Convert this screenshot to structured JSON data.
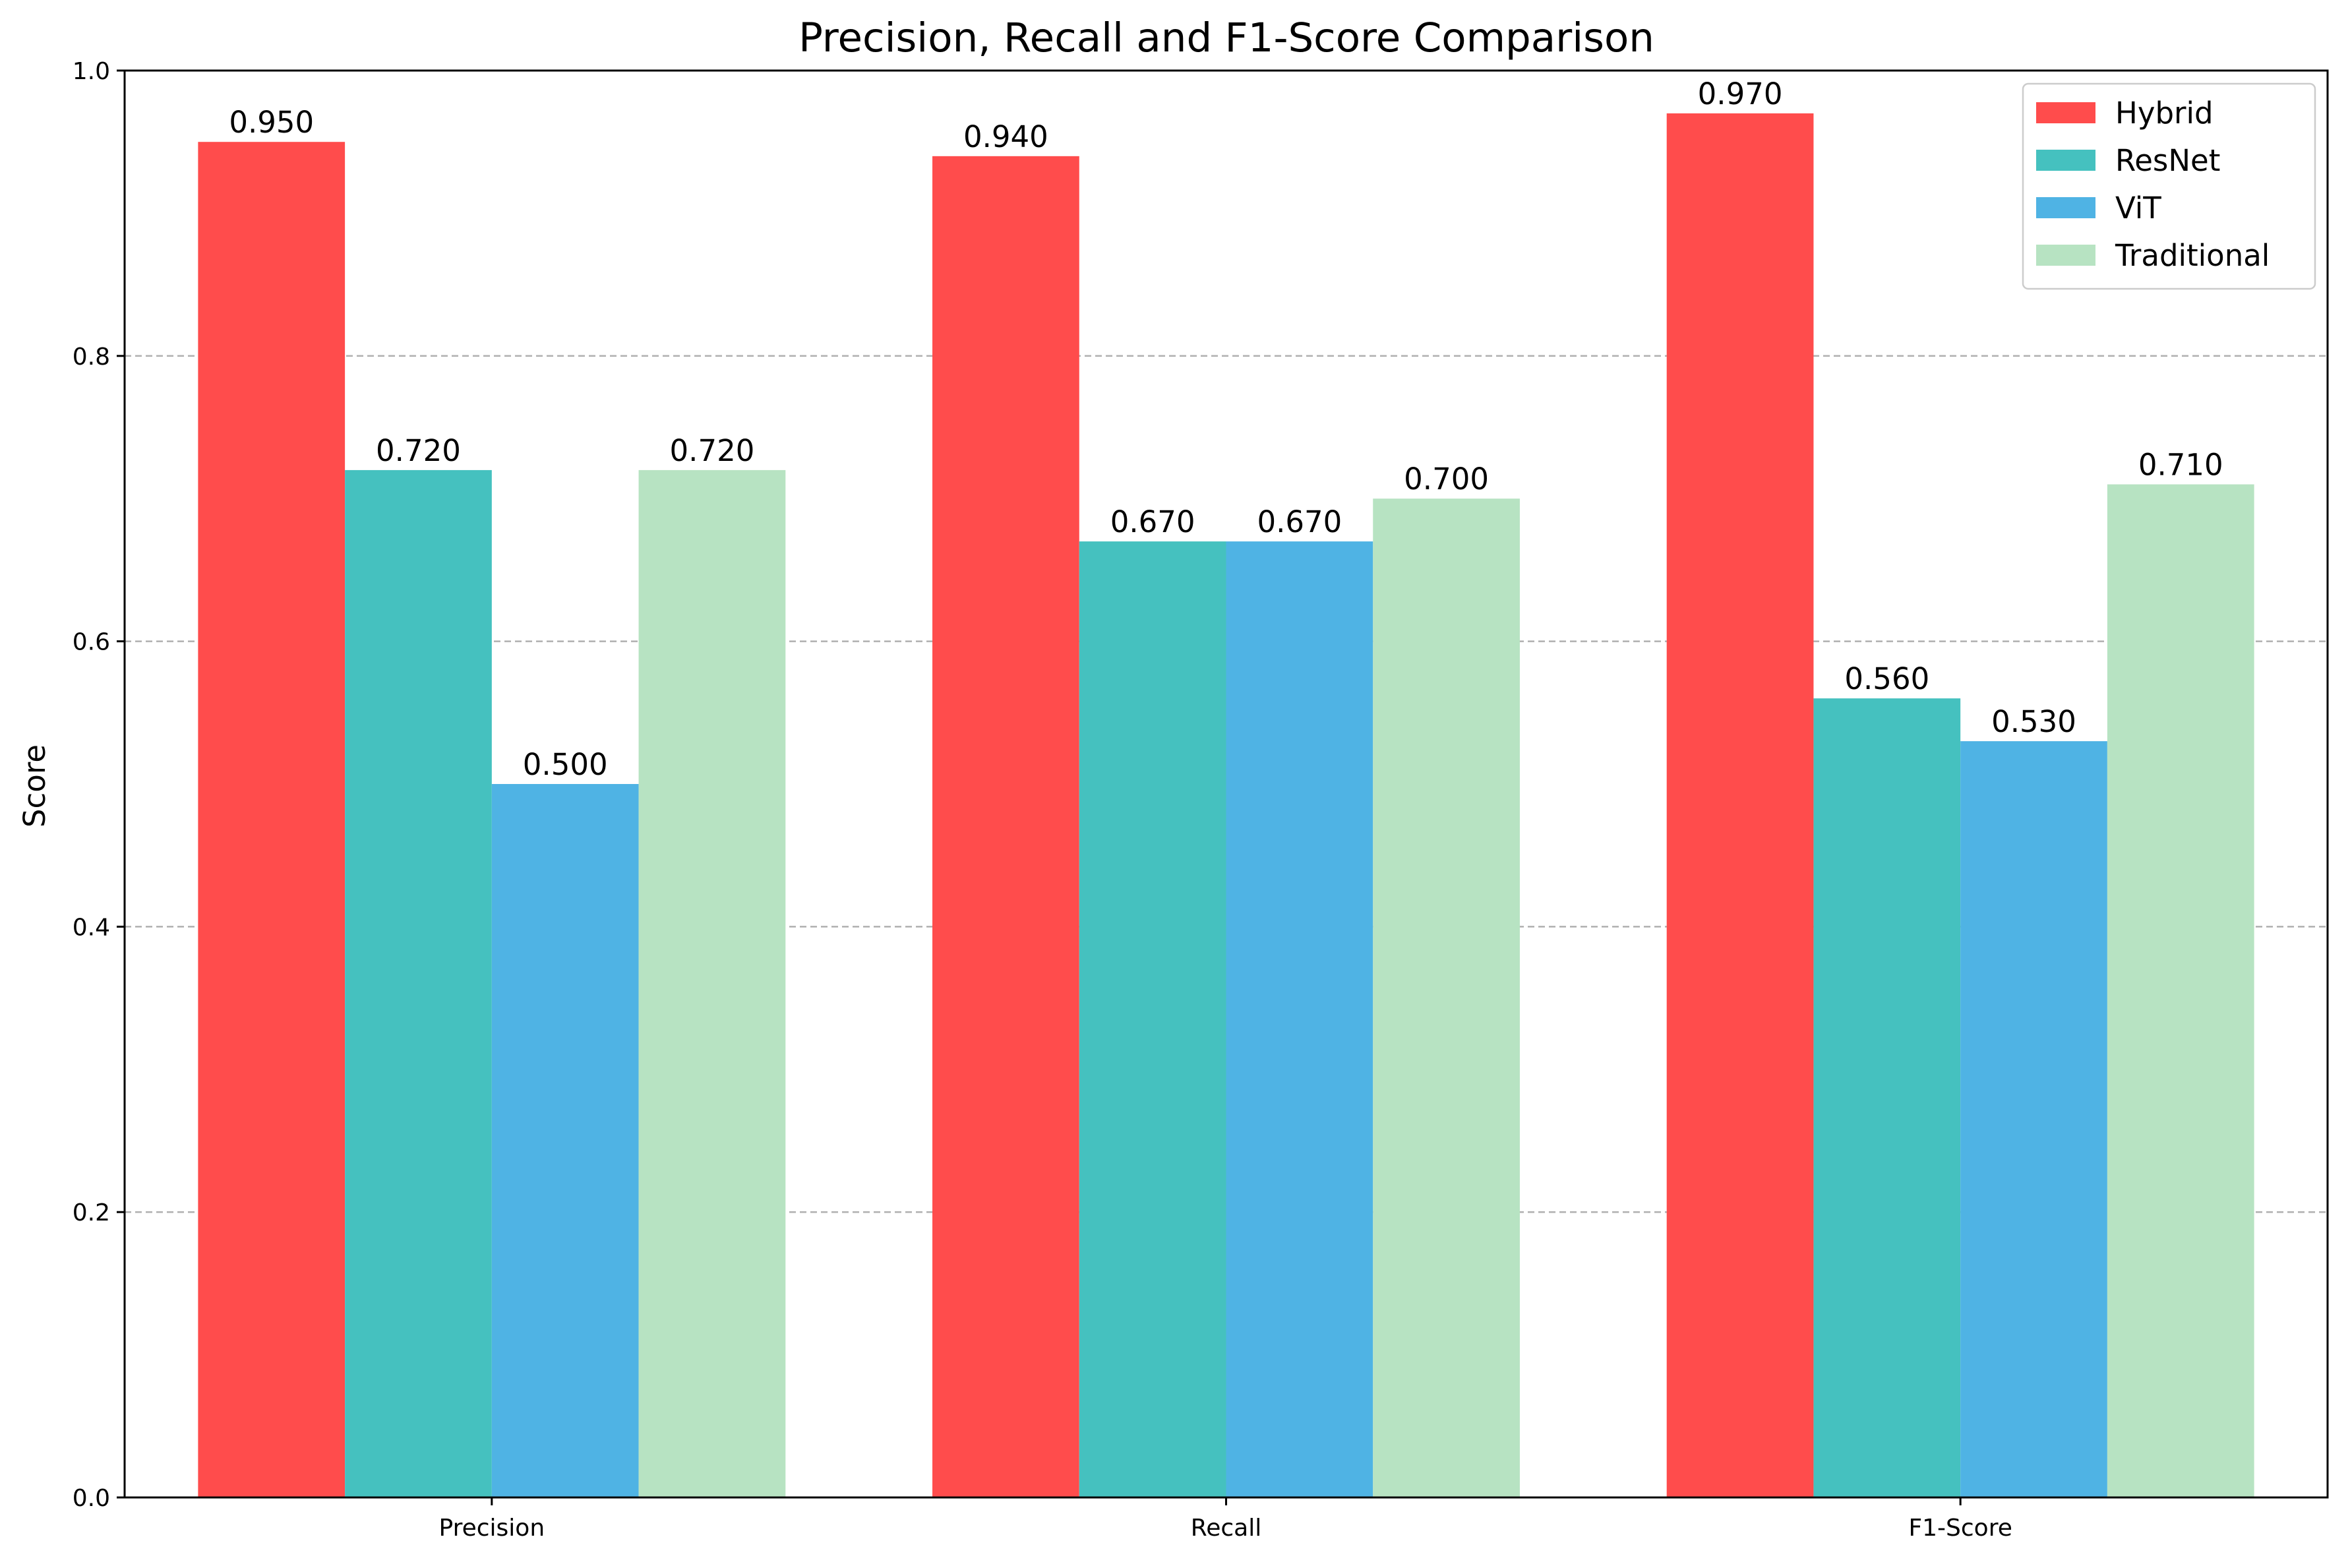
{
  "chart_data": {
    "type": "bar",
    "title": "Precision, Recall and F1-Score Comparison",
    "xlabel": "",
    "ylabel": "Score",
    "ylim": [
      0,
      1.0
    ],
    "yticks": [
      "0.0",
      "0.2",
      "0.4",
      "0.6",
      "0.8",
      "1.0"
    ],
    "categories": [
      "Precision",
      "Recall",
      "F1-Score"
    ],
    "series": [
      {
        "name": "Hybrid",
        "color": "#ff4c4c",
        "values": [
          0.95,
          0.94,
          0.97
        ],
        "labels": [
          "0.950",
          "0.940",
          "0.970"
        ]
      },
      {
        "name": "ResNet",
        "color": "#45c1bf",
        "values": [
          0.72,
          0.67,
          0.56
        ],
        "labels": [
          "0.720",
          "0.670",
          "0.560"
        ]
      },
      {
        "name": "ViT",
        "color": "#4fb3e4",
        "values": [
          0.5,
          0.67,
          0.53
        ],
        "labels": [
          "0.500",
          "0.670",
          "0.530"
        ]
      },
      {
        "name": "Traditional",
        "color": "#b7e3c2",
        "values": [
          0.72,
          0.7,
          0.71
        ],
        "labels": [
          "0.720",
          "0.700",
          "0.710"
        ]
      }
    ],
    "grid": "y-dashed",
    "legend_position": "top-right"
  }
}
